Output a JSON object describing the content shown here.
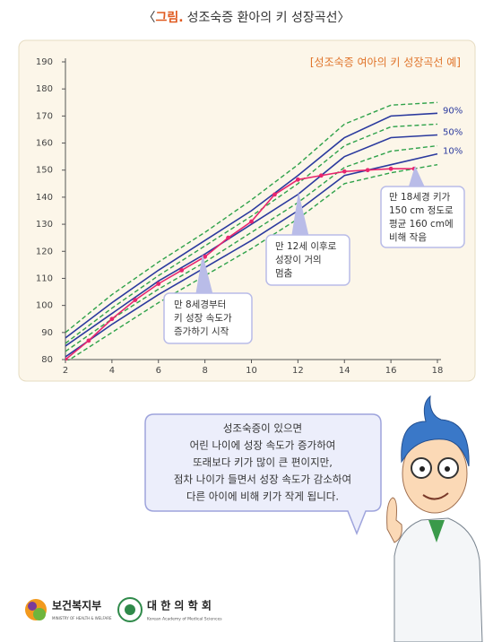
{
  "header": {
    "prefix": "〈",
    "label": "그림.",
    "title": "성조숙증 환아의 키 성장곡선〉"
  },
  "chart_data": {
    "type": "line",
    "subtitle": "[성조숙증 여아의 키 성장곡선 예]",
    "x": [
      2,
      4,
      6,
      8,
      10,
      12,
      14,
      16,
      18
    ],
    "xlim": [
      2,
      18
    ],
    "xticks": [
      2,
      4,
      6,
      8,
      10,
      12,
      14,
      16,
      18
    ],
    "ylim": [
      80,
      190
    ],
    "yticks": [
      80,
      90,
      100,
      110,
      120,
      130,
      140,
      150,
      160,
      170,
      180,
      190
    ],
    "series": [
      {
        "color": "#2fa24a",
        "dashed": true,
        "values": [
          90,
          104,
          116,
          127,
          139,
          152,
          167,
          174,
          175
        ]
      },
      {
        "name": "90%",
        "color": "#2b3a9e",
        "values": [
          88,
          101,
          113,
          124,
          135,
          148,
          162,
          170,
          171
        ]
      },
      {
        "color": "#2fa24a",
        "dashed": true,
        "values": [
          86,
          99,
          111,
          122,
          133,
          145,
          159,
          166,
          167
        ]
      },
      {
        "name": "50%",
        "color": "#2b3a9e",
        "values": [
          85,
          97,
          109,
          119,
          130,
          141,
          155,
          162,
          163
        ]
      },
      {
        "color": "#2fa24a",
        "dashed": true,
        "values": [
          83,
          95,
          106,
          116,
          127,
          138,
          151,
          157,
          159
        ]
      },
      {
        "name": "10%",
        "color": "#2b3a9e",
        "values": [
          81,
          93,
          104,
          114,
          124,
          135,
          148,
          152,
          156
        ]
      },
      {
        "color": "#2fa24a",
        "dashed": true,
        "values": [
          79,
          90,
          101,
          111,
          121,
          132,
          145,
          149,
          152
        ]
      },
      {
        "color": "#e8266e",
        "markers": true,
        "x": [
          2,
          3,
          4,
          5,
          6,
          7,
          8,
          9,
          10,
          11,
          12,
          13,
          14,
          15,
          16,
          17
        ],
        "values": [
          80,
          87,
          95,
          102,
          108,
          113,
          118,
          125,
          131,
          141,
          146.5,
          148,
          149.5,
          150,
          150.5,
          150.5
        ]
      }
    ],
    "annotations": [
      {
        "lines": [
          "만 8세경부터",
          "키 성장 속도가",
          "증가하기 시작"
        ]
      },
      {
        "lines": [
          "만 12세 이후로",
          "성장이 거의",
          "멈춤"
        ]
      },
      {
        "lines": [
          "만 18세경 키가",
          "150 cm 정도로",
          "평균 160 cm에",
          "비해 작음"
        ]
      }
    ]
  },
  "speech": {
    "lines": [
      "성조숙증이 있으면",
      "어린 나이에 성장 속도가 증가하여",
      "또래보다 키가 많이 큰 편이지만,",
      "점차 나이가 들면서 성장 속도가 감소하여",
      "다른 아이에 비해 키가 작게 됩니다."
    ]
  },
  "footer": {
    "ministry": "보건복지부",
    "ministry_en": "MINISTRY OF HEALTH & WELFARE",
    "academy": "대 한 의 학 회",
    "academy_en": "Korean Academy of Medical Sciences"
  }
}
